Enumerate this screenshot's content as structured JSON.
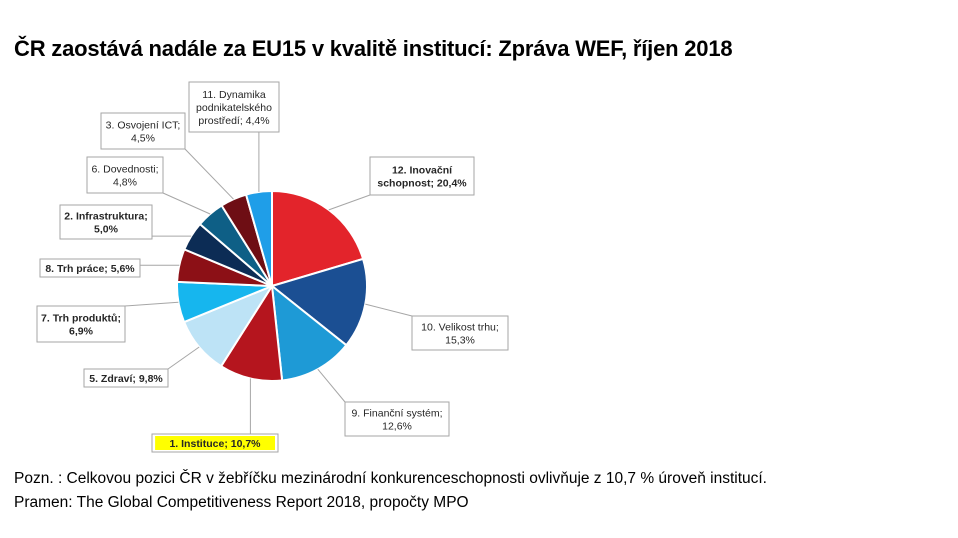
{
  "title": "ČR zaostává nadále za EU15 v kvalitě institucí: Zpráva WEF, říjen 2018",
  "notes": {
    "note": "Pozn. : Celkovou pozici ČR v žebříčku mezinárodní konkurenceschopnosti ovlivňuje z 10,7 % úroveň institucí.",
    "source": "Pramen: The Global Competitiveness Report 2018, propočty MPO"
  },
  "chart_data": {
    "type": "pie",
    "title": "ČR zaostává nadále za EU15 v kvalitě institucí: Zpráva WEF, říjen 2018",
    "slices": [
      {
        "label_lines": [
          "12. Inovační",
          "schopnost; 20,4%"
        ],
        "name": "12. Inovační schopnost",
        "value": 20.4,
        "color": "#e3242b",
        "bold": true,
        "highlight": false
      },
      {
        "label_lines": [
          "10. Velikost trhu;",
          "15,3%"
        ],
        "name": "10. Velikost trhu",
        "value": 15.3,
        "color": "#1b4f93",
        "bold": false,
        "highlight": false
      },
      {
        "label_lines": [
          "9. Finanční systém;",
          "12,6%"
        ],
        "name": "9. Finanční systém",
        "value": 12.6,
        "color": "#1e9ad6",
        "bold": false,
        "highlight": false
      },
      {
        "label_lines": [
          "1. Instituce; 10,7%"
        ],
        "name": "1. Instituce",
        "value": 10.7,
        "color": "#b5151e",
        "bold": true,
        "highlight": true
      },
      {
        "label_lines": [
          "5. Zdraví; 9,8%"
        ],
        "name": "5. Zdraví",
        "value": 9.8,
        "color": "#bde3f6",
        "bold": true,
        "highlight": false
      },
      {
        "label_lines": [
          "7. Trh produktů;",
          "6,9%"
        ],
        "name": "7. Trh produktů",
        "value": 6.9,
        "color": "#16b6ee",
        "bold": true,
        "highlight": false
      },
      {
        "label_lines": [
          "8. Trh práce; 5,6%"
        ],
        "name": "8. Trh práce",
        "value": 5.6,
        "color": "#8c1016",
        "bold": true,
        "highlight": false
      },
      {
        "label_lines": [
          "2. Infrastruktura;",
          "5,0%"
        ],
        "name": "2. Infrastruktura",
        "value": 5.0,
        "color": "#0c2c55",
        "bold": true,
        "highlight": false
      },
      {
        "label_lines": [
          "6. Dovednosti;",
          "4,8%"
        ],
        "name": "6. Dovednosti",
        "value": 4.8,
        "color": "#0e5f86",
        "bold": false,
        "highlight": false
      },
      {
        "label_lines": [
          "3. Osvojení ICT;",
          "4,5%"
        ],
        "name": "3. Osvojení ICT",
        "value": 4.5,
        "color": "#6e0e14",
        "bold": false,
        "highlight": false
      },
      {
        "label_lines": [
          "11. Dynamika",
          "podnikatelského",
          "prostředí; 4,4%"
        ],
        "name": "11. Dynamika podnikatelského prostředí",
        "value": 4.4,
        "color": "#1f9ee8",
        "bold": false,
        "highlight": false
      }
    ]
  }
}
